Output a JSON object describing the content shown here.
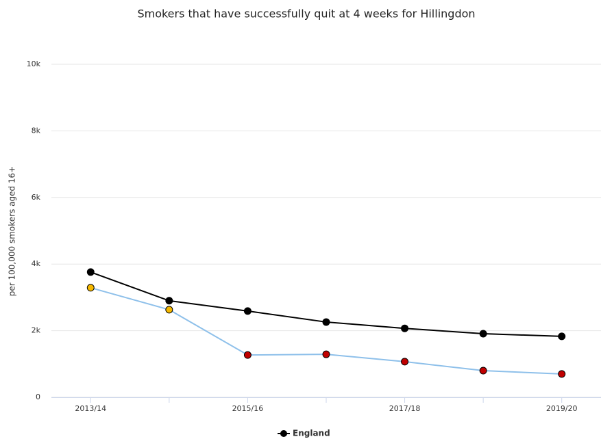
{
  "chart_data": {
    "type": "line",
    "title": "Smokers that have successfully quit at 4 weeks for Hillingdon",
    "ylabel": "per 100,000 smokers aged 16+",
    "categories": [
      "2013/14",
      null,
      "2015/16",
      null,
      "2017/18",
      null,
      "2019/20"
    ],
    "series": [
      {
        "name": "England",
        "color": "#000000",
        "marker_color": "#000000",
        "values": [
          3760,
          2900,
          2590,
          2260,
          2070,
          1910,
          1830
        ]
      },
      {
        "color": "#8ec0ea",
        "marker_colors": [
          "#f5b800",
          "#f5b800",
          "#c00000",
          "#c00000",
          "#c00000",
          "#c00000",
          "#c00000"
        ],
        "values": [
          3290,
          2630,
          1270,
          1290,
          1070,
          800,
          700
        ]
      }
    ],
    "ylim": [
      0,
      10000
    ],
    "yticks": [
      0,
      {
        "value": 2000,
        "label": "2k"
      },
      {
        "value": 4000,
        "label": "4k"
      },
      {
        "value": 6000,
        "label": "6k"
      },
      {
        "value": 8000,
        "label": "8k"
      },
      {
        "value": 10000,
        "label": "10k"
      }
    ],
    "grid": true
  }
}
